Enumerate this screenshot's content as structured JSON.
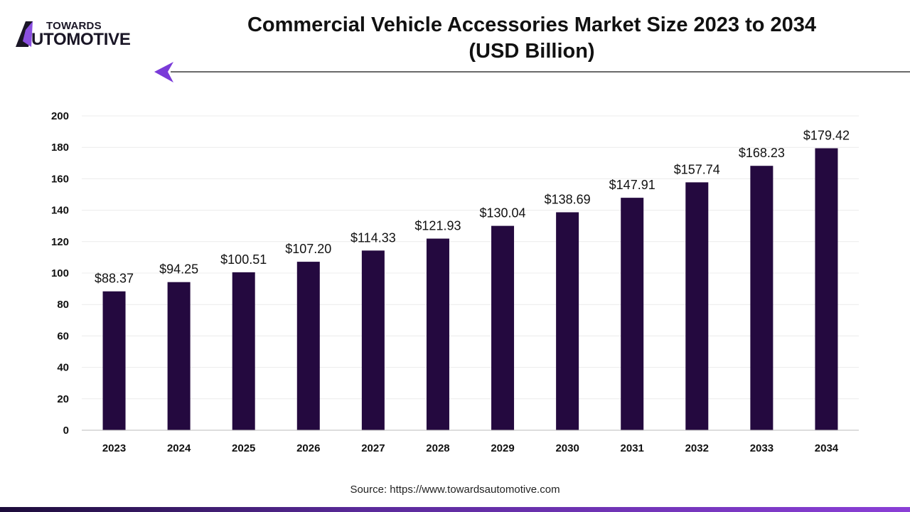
{
  "brand": {
    "logo_line1": "TOWARDS",
    "logo_line2": "UTOMOTIVE",
    "logo_full": "TOWARDS AUTOMOTIVE",
    "accent": "#8a3fd6"
  },
  "source": "Source: https://www.towardsautomotive.com",
  "chart_data": {
    "type": "bar",
    "title": "Commercial Vehicle Accessories Market Size 2023 to 2034 (USD Billion)",
    "title_line1": "Commercial Vehicle Accessories Market Size 2023 to 2034",
    "title_line2": "(USD Billion)",
    "categories": [
      "2023",
      "2024",
      "2025",
      "2026",
      "2027",
      "2028",
      "2029",
      "2030",
      "2031",
      "2032",
      "2033",
      "2034"
    ],
    "values": [
      88.37,
      94.25,
      100.51,
      107.2,
      114.33,
      121.93,
      130.04,
      138.69,
      147.91,
      157.74,
      168.23,
      179.42
    ],
    "data_labels": [
      "$88.37",
      "$94.25",
      "$100.51",
      "$107.20",
      "$114.33",
      "$121.93",
      "$130.04",
      "$138.69",
      "$147.91",
      "$157.74",
      "$168.23",
      "$179.42"
    ],
    "yticks": [
      0,
      20,
      40,
      60,
      80,
      100,
      120,
      140,
      160,
      180,
      200
    ],
    "ylim": [
      0,
      200
    ],
    "grid": true,
    "bar_color": "#24093f",
    "xlabel": "",
    "ylabel": ""
  }
}
